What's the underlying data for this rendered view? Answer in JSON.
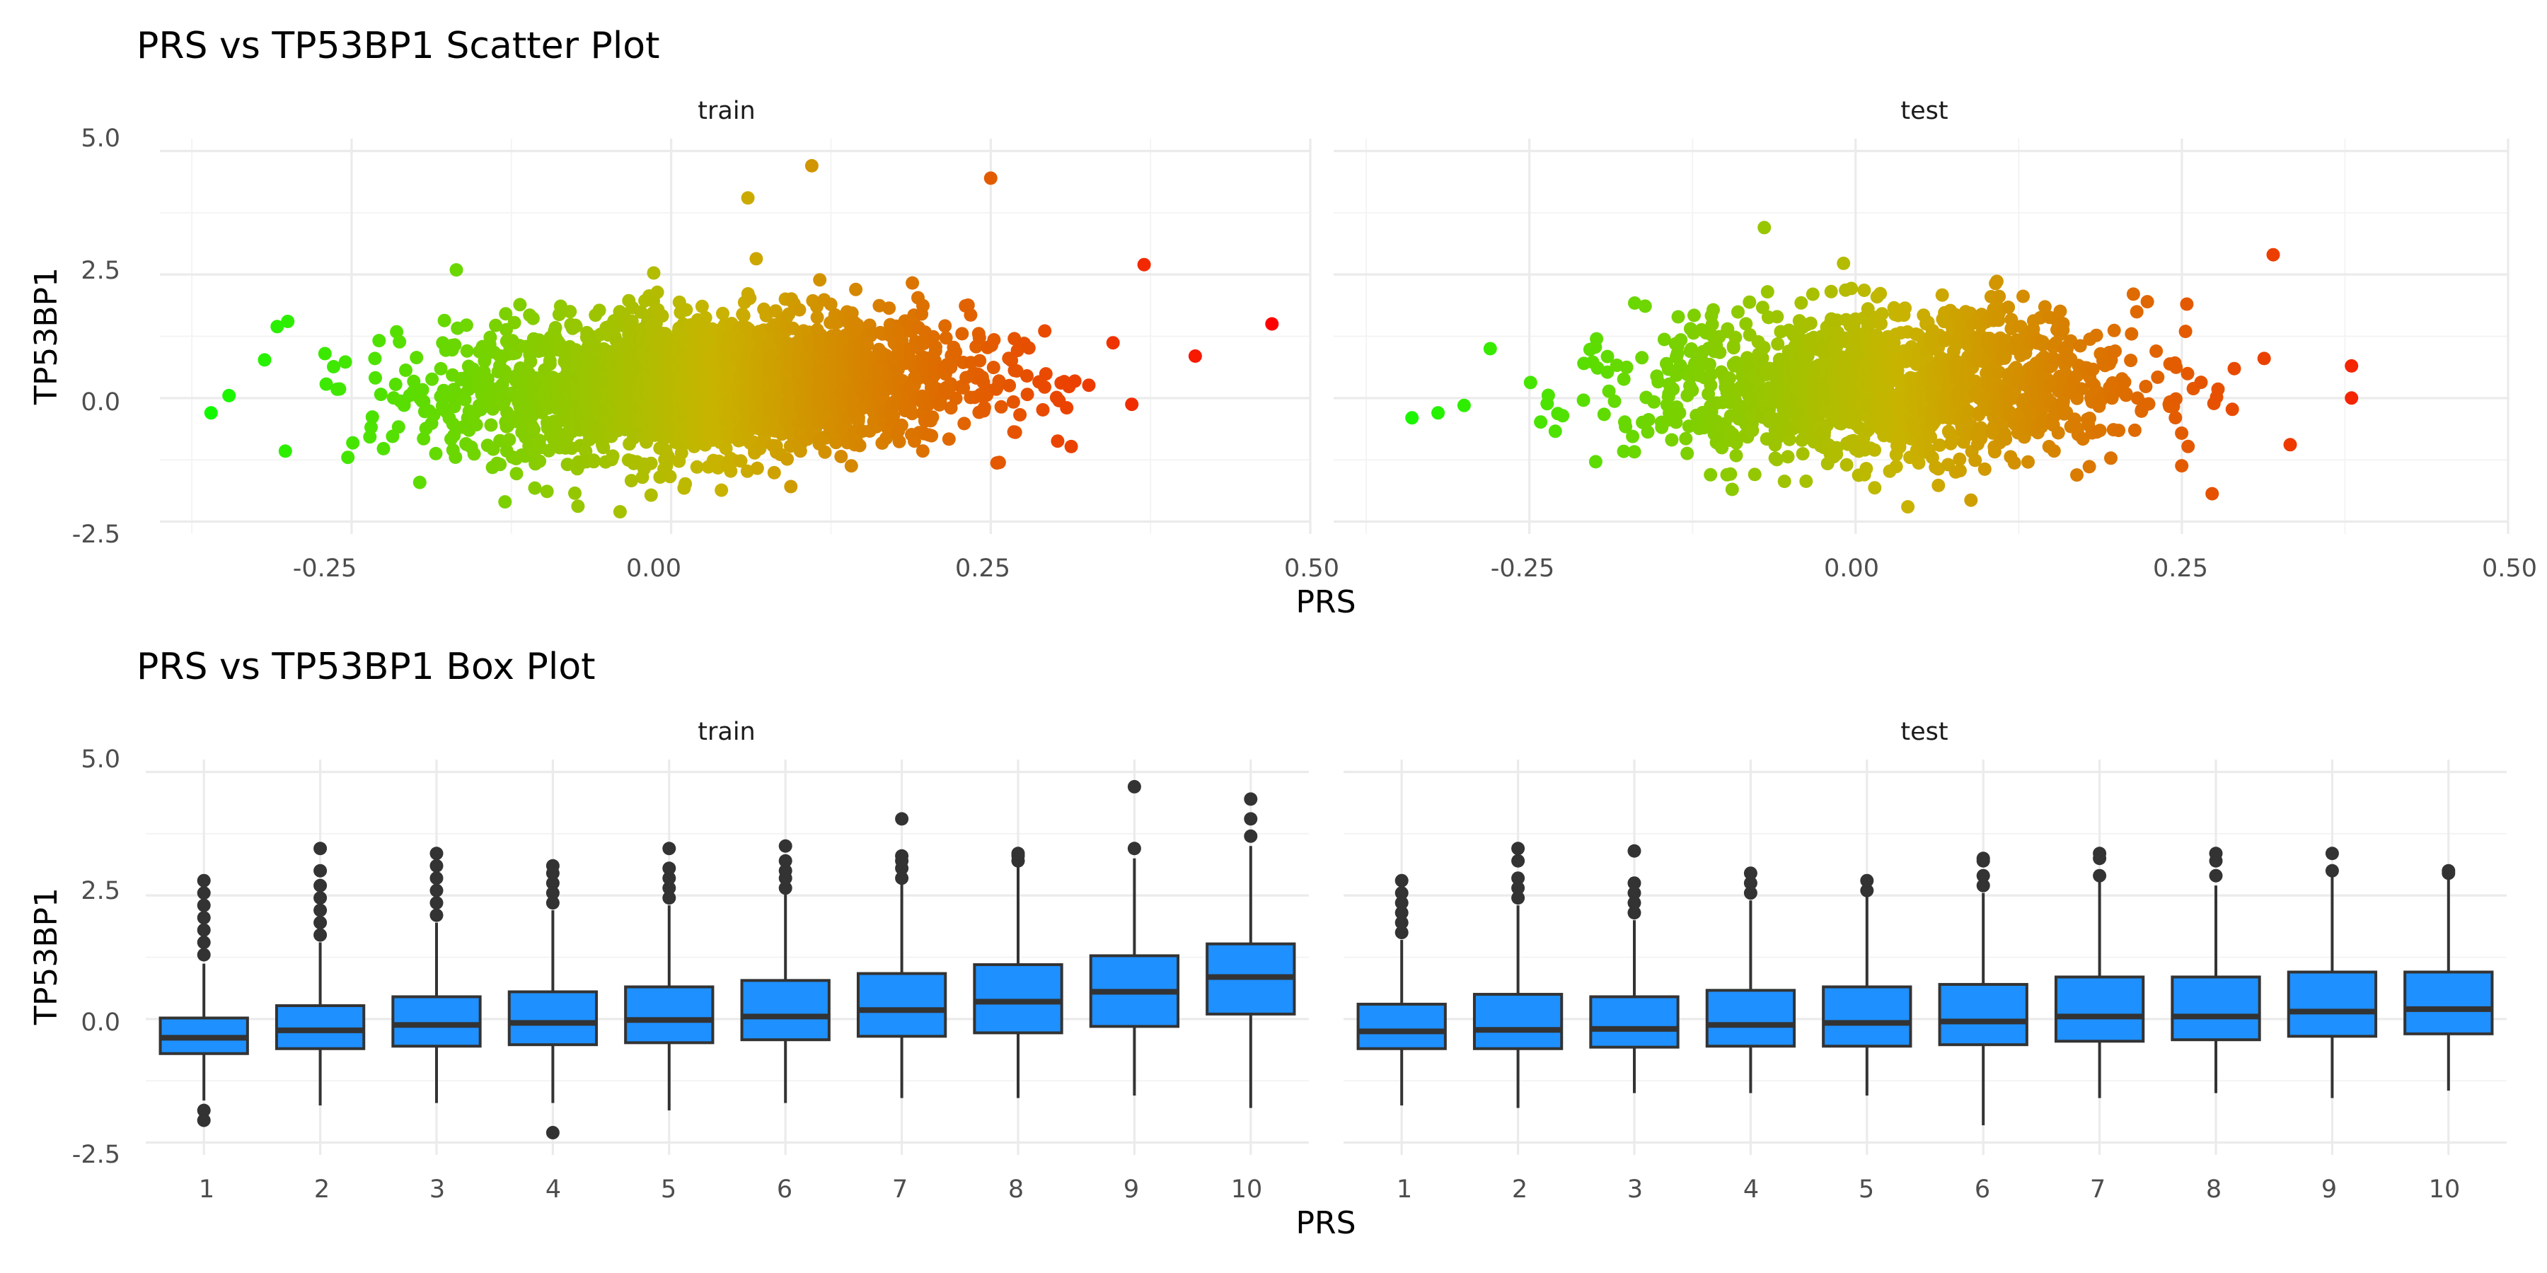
{
  "scatter": {
    "title": "PRS vs TP53BP1 Scatter Plot",
    "xlabel": "PRS",
    "ylabel": "TP53BP1",
    "panels": [
      "train",
      "test"
    ],
    "x_ticks": [
      "-0.25",
      "0.00",
      "0.25",
      "0.50"
    ],
    "y_ticks": [
      "5.0",
      "2.5",
      "0.0",
      "-2.5"
    ]
  },
  "box": {
    "title": "PRS vs TP53BP1 Box Plot",
    "xlabel": "PRS",
    "ylabel": "TP53BP1",
    "panels": [
      "train",
      "test"
    ],
    "x_ticks": [
      "1",
      "2",
      "3",
      "4",
      "5",
      "6",
      "7",
      "8",
      "9",
      "10"
    ],
    "y_ticks": [
      "5.0",
      "2.5",
      "0.0",
      "-2.5"
    ]
  },
  "colors": {
    "gradient_low": "#00ff00",
    "gradient_high": "#ff0000",
    "box_fill": "#1e90ff",
    "box_outline": "#333333"
  },
  "chart_data": [
    {
      "type": "scatter",
      "title": "PRS vs TP53BP1 Scatter Plot",
      "xlabel": "PRS",
      "ylabel": "TP53BP1",
      "facets": [
        "train",
        "test"
      ],
      "xlim": [
        -0.4,
        0.5
      ],
      "ylim": [
        -2.5,
        5.0
      ],
      "color_scale": "gradient by PRS (green to red)",
      "grid": true,
      "legend": "none",
      "series": [
        {
          "facet": "train",
          "point_count_approx": 20000,
          "x_range": [
            -0.36,
            0.47
          ],
          "y_range": [
            -2.3,
            4.7
          ],
          "trend": "TP53BP1 increases with PRS",
          "highlighted_points": [
            {
              "x": -0.36,
              "y": -0.3
            },
            {
              "x": 0.11,
              "y": 4.7
            },
            {
              "x": 0.25,
              "y": 4.45
            },
            {
              "x": 0.06,
              "y": 4.05
            },
            {
              "x": 0.41,
              "y": 0.85
            },
            {
              "x": 0.47,
              "y": 1.5
            },
            {
              "x": -0.04,
              "y": -2.3
            },
            {
              "x": -0.3,
              "y": 1.55
            },
            {
              "x": 0.37,
              "y": 2.7
            },
            {
              "x": -0.13,
              "y": -2.1
            }
          ]
        },
        {
          "facet": "test",
          "point_count_approx": 5000,
          "x_range": [
            -0.34,
            0.38
          ],
          "y_range": [
            -2.2,
            3.5
          ],
          "trend": "weak positive relation",
          "highlighted_points": [
            {
              "x": -0.34,
              "y": -0.4
            },
            {
              "x": -0.32,
              "y": -0.3
            },
            {
              "x": -0.3,
              "y": -0.15
            },
            {
              "x": 0.38,
              "y": 0.65
            },
            {
              "x": 0.38,
              "y": 0.0
            },
            {
              "x": 0.04,
              "y": -2.2
            },
            {
              "x": -0.07,
              "y": 3.45
            },
            {
              "x": 0.32,
              "y": 2.9
            },
            {
              "x": -0.28,
              "y": 1.0
            }
          ]
        }
      ]
    },
    {
      "type": "box",
      "title": "PRS vs TP53BP1 Box Plot",
      "xlabel": "PRS",
      "ylabel": "TP53BP1",
      "facets": [
        "train",
        "test"
      ],
      "categories": [
        "1",
        "2",
        "3",
        "4",
        "5",
        "6",
        "7",
        "8",
        "9",
        "10"
      ],
      "ylim": [
        -2.5,
        5.0
      ],
      "grid": true,
      "legend": "none",
      "series": [
        {
          "facet": "train",
          "boxes": [
            {
              "q1": -0.7,
              "median": -0.38,
              "q3": 0.02,
              "whisker_low": -1.65,
              "whisker_high": 1.12,
              "outliers": [
                1.3,
                1.55,
                1.8,
                2.05,
                2.3,
                2.55,
                2.8,
                -1.85,
                -2.05
              ]
            },
            {
              "q1": -0.6,
              "median": -0.23,
              "q3": 0.27,
              "whisker_low": -1.75,
              "whisker_high": 1.55,
              "outliers": [
                1.7,
                1.95,
                2.2,
                2.45,
                2.7,
                3.0,
                3.45
              ]
            },
            {
              "q1": -0.55,
              "median": -0.12,
              "q3": 0.45,
              "whisker_low": -1.7,
              "whisker_high": 1.95,
              "outliers": [
                2.1,
                2.35,
                2.6,
                2.85,
                3.1,
                3.35
              ]
            },
            {
              "q1": -0.52,
              "median": -0.08,
              "q3": 0.55,
              "whisker_low": -1.7,
              "whisker_high": 2.2,
              "outliers": [
                2.35,
                2.55,
                2.75,
                2.95,
                3.1,
                -2.3
              ]
            },
            {
              "q1": -0.48,
              "median": -0.02,
              "q3": 0.65,
              "whisker_low": -1.85,
              "whisker_high": 2.3,
              "outliers": [
                2.45,
                2.65,
                2.85,
                3.05,
                3.45
              ]
            },
            {
              "q1": -0.42,
              "median": 0.05,
              "q3": 0.78,
              "whisker_low": -1.7,
              "whisker_high": 2.55,
              "outliers": [
                2.65,
                2.85,
                3.0,
                3.2,
                3.5
              ]
            },
            {
              "q1": -0.35,
              "median": 0.18,
              "q3": 0.92,
              "whisker_low": -1.6,
              "whisker_high": 2.75,
              "outliers": [
                2.85,
                3.05,
                3.2,
                3.3,
                4.05
              ]
            },
            {
              "q1": -0.28,
              "median": 0.35,
              "q3": 1.1,
              "whisker_low": -1.6,
              "whisker_high": 3.1,
              "outliers": [
                3.2,
                3.3,
                3.35
              ]
            },
            {
              "q1": -0.15,
              "median": 0.55,
              "q3": 1.28,
              "whisker_low": -1.55,
              "whisker_high": 3.25,
              "outliers": [
                3.45,
                4.7
              ]
            },
            {
              "q1": 0.1,
              "median": 0.85,
              "q3": 1.52,
              "whisker_low": -1.8,
              "whisker_high": 3.5,
              "outliers": [
                3.7,
                4.05,
                4.45
              ]
            }
          ]
        },
        {
          "facet": "test",
          "boxes": [
            {
              "q1": -0.6,
              "median": -0.25,
              "q3": 0.3,
              "whisker_low": -1.75,
              "whisker_high": 1.6,
              "outliers": [
                1.75,
                1.95,
                2.15,
                2.35,
                2.55,
                2.8
              ]
            },
            {
              "q1": -0.6,
              "median": -0.22,
              "q3": 0.5,
              "whisker_low": -1.8,
              "whisker_high": 2.3,
              "outliers": [
                2.45,
                2.65,
                2.85,
                3.2,
                3.45
              ]
            },
            {
              "q1": -0.57,
              "median": -0.2,
              "q3": 0.45,
              "whisker_low": -1.5,
              "whisker_high": 2.0,
              "outliers": [
                2.15,
                2.35,
                2.55,
                2.75,
                3.4
              ]
            },
            {
              "q1": -0.55,
              "median": -0.12,
              "q3": 0.58,
              "whisker_low": -1.5,
              "whisker_high": 2.4,
              "outliers": [
                2.55,
                2.75,
                2.95
              ]
            },
            {
              "q1": -0.55,
              "median": -0.08,
              "q3": 0.65,
              "whisker_low": -1.55,
              "whisker_high": 2.5,
              "outliers": [
                2.6,
                2.8
              ]
            },
            {
              "q1": -0.52,
              "median": -0.05,
              "q3": 0.7,
              "whisker_low": -2.15,
              "whisker_high": 2.55,
              "outliers": [
                2.7,
                2.9,
                3.2,
                3.25
              ]
            },
            {
              "q1": -0.45,
              "median": 0.05,
              "q3": 0.85,
              "whisker_low": -1.6,
              "whisker_high": 2.8,
              "outliers": [
                2.9,
                3.25,
                3.35
              ]
            },
            {
              "q1": -0.42,
              "median": 0.05,
              "q3": 0.85,
              "whisker_low": -1.5,
              "whisker_high": 2.7,
              "outliers": [
                2.9,
                3.2,
                3.35
              ]
            },
            {
              "q1": -0.35,
              "median": 0.15,
              "q3": 0.95,
              "whisker_low": -1.6,
              "whisker_high": 2.9,
              "outliers": [
                3.0,
                3.35
              ]
            },
            {
              "q1": -0.3,
              "median": 0.2,
              "q3": 0.95,
              "whisker_low": -1.45,
              "whisker_high": 2.85,
              "outliers": [
                2.95,
                3.0
              ]
            }
          ]
        }
      ]
    }
  ]
}
